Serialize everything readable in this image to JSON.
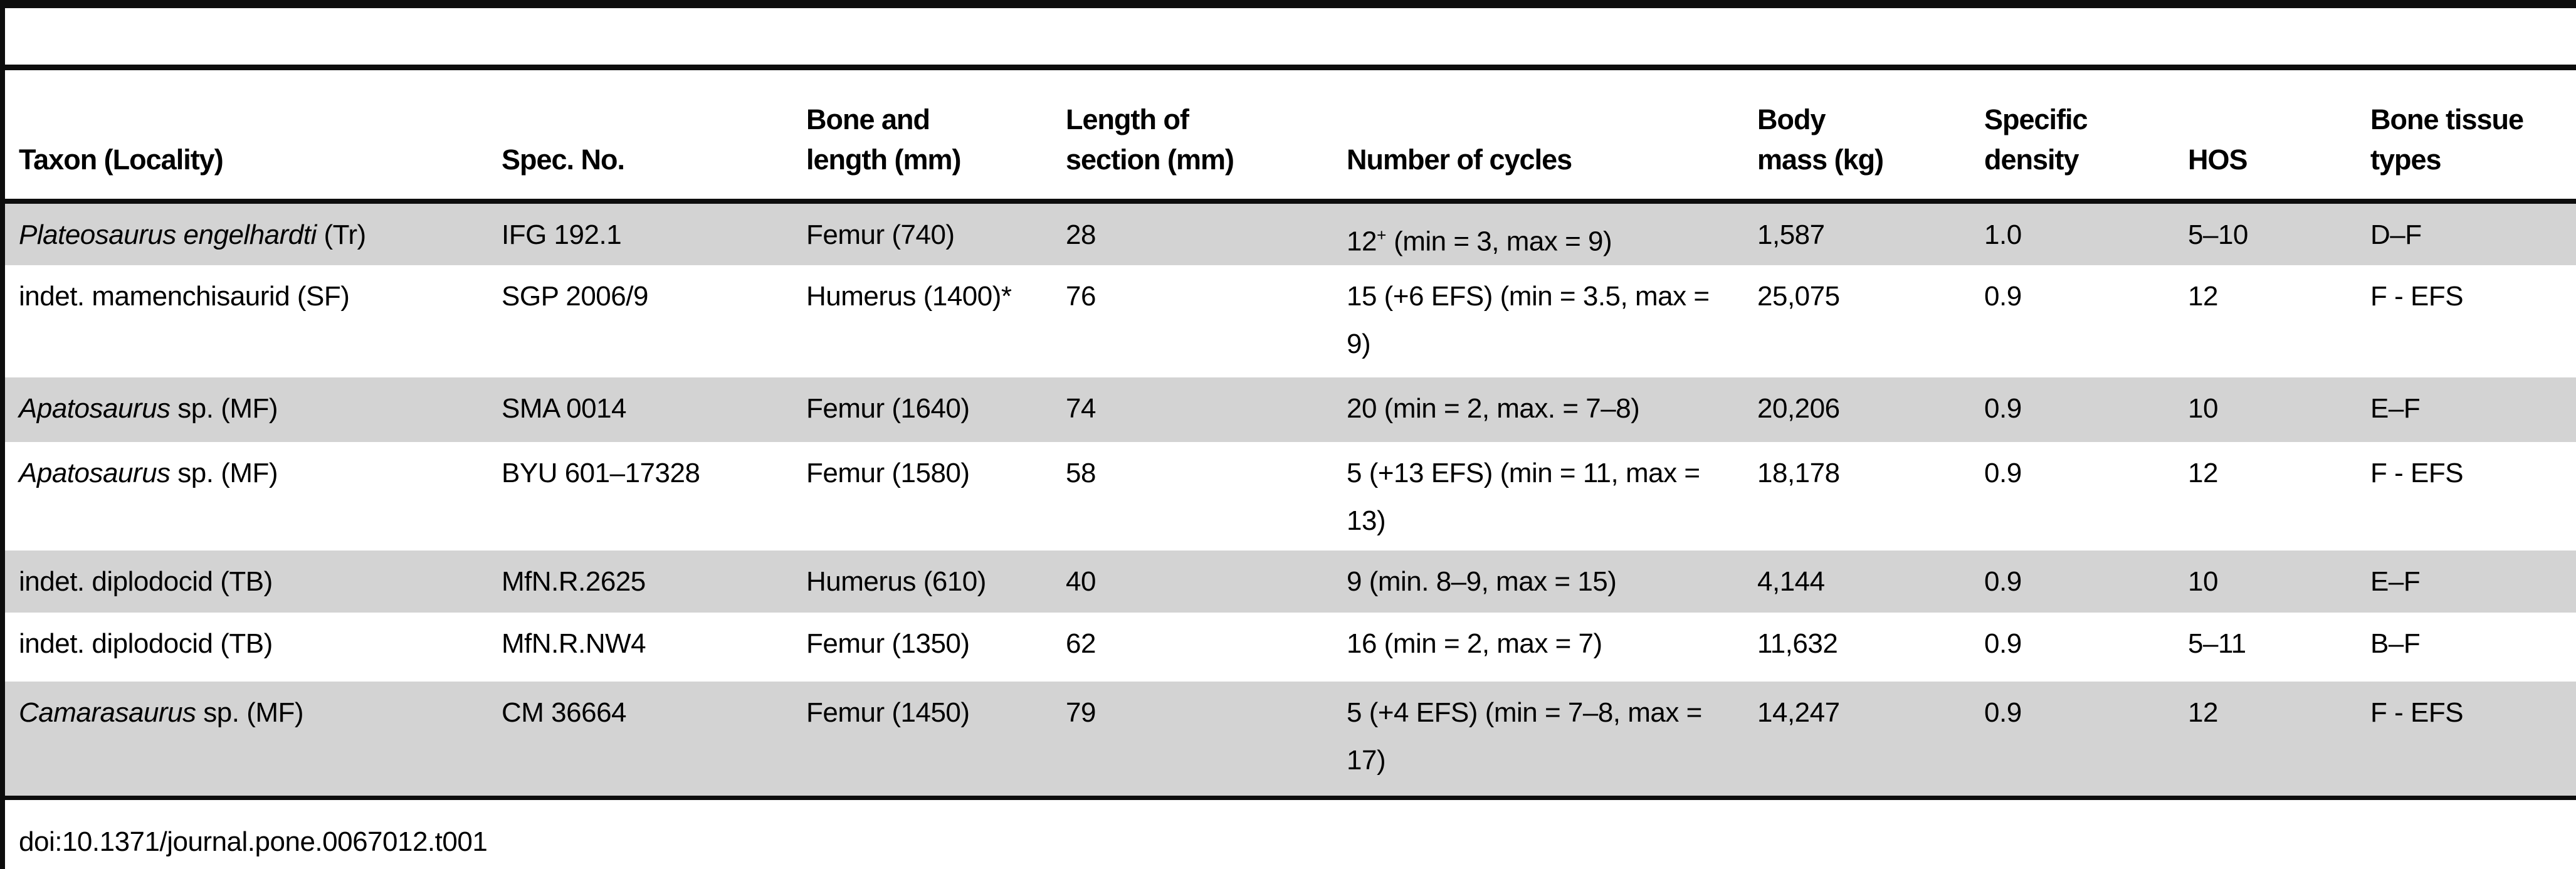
{
  "table": {
    "headers": [
      {
        "label": "Taxon (Locality)"
      },
      {
        "label": "Spec. No."
      },
      {
        "label": "Bone and\nlength (mm)"
      },
      {
        "label": "Length of\nsection (mm)"
      },
      {
        "label": "Number of cycles"
      },
      {
        "label": "Body\nmass (kg)"
      },
      {
        "label": "Specific\ndensity"
      },
      {
        "label": "HOS"
      },
      {
        "label": "Bone tissue\ntypes"
      }
    ],
    "rows": [
      {
        "taxon": [
          {
            "t": "Plateosaurus engelhardti",
            "italic": true
          },
          {
            "t": " (Tr)"
          }
        ],
        "spec_no": "IFG 192.1",
        "bone_length": "Femur (740)",
        "section_length": "28",
        "cycles": [
          {
            "t": "12"
          },
          {
            "t": "+",
            "sup": true
          },
          {
            "t": " (min = 3, max = 9)"
          }
        ],
        "body_mass": "1,587",
        "specific_density": "1.0",
        "hos": "5–10",
        "tissue_types": "D–F"
      },
      {
        "taxon": [
          {
            "t": "indet. mamenchisaurid (SF)"
          }
        ],
        "spec_no": "SGP 2006/9",
        "bone_length": "Humerus (1400)*",
        "section_length": "76",
        "cycles": [
          {
            "t": "15 (+6 EFS) (min = 3.5, max = 9)"
          }
        ],
        "body_mass": "25,075",
        "specific_density": "0.9",
        "hos": "12",
        "tissue_types": "F - EFS"
      },
      {
        "taxon": [
          {
            "t": "Apatosaurus",
            "italic": true
          },
          {
            "t": " sp. (MF)"
          }
        ],
        "spec_no": "SMA 0014",
        "bone_length": "Femur (1640)",
        "section_length": "74",
        "cycles": [
          {
            "t": "20 (min = 2, max. = 7–8)"
          }
        ],
        "body_mass": "20,206",
        "specific_density": "0.9",
        "hos": "10",
        "tissue_types": "E–F"
      },
      {
        "taxon": [
          {
            "t": "Apatosaurus",
            "italic": true
          },
          {
            "t": " sp. (MF)"
          }
        ],
        "spec_no": "BYU 601–17328",
        "bone_length": "Femur (1580)",
        "section_length": "58",
        "cycles": [
          {
            "t": "5 (+13 EFS) (min = 11, max = 13)"
          }
        ],
        "body_mass": "18,178",
        "specific_density": "0.9",
        "hos": "12",
        "tissue_types": "F - EFS"
      },
      {
        "taxon": [
          {
            "t": "indet. diplodocid (TB)"
          }
        ],
        "spec_no": "MfN.R.2625",
        "bone_length": "Humerus (610)",
        "section_length": "40",
        "cycles": [
          {
            "t": "9 (min. 8–9, max = 15)"
          }
        ],
        "body_mass": "4,144",
        "specific_density": "0.9",
        "hos": "10",
        "tissue_types": "E–F"
      },
      {
        "taxon": [
          {
            "t": "indet. diplodocid (TB)"
          }
        ],
        "spec_no": "MfN.R.NW4",
        "bone_length": "Femur (1350)",
        "section_length": "62",
        "cycles": [
          {
            "t": "16 (min = 2, max = 7)"
          }
        ],
        "body_mass": "11,632",
        "specific_density": "0.9",
        "hos": "5–11",
        "tissue_types": "B–F"
      },
      {
        "taxon": [
          {
            "t": "Camarasaurus",
            "italic": true
          },
          {
            "t": " sp. (MF)"
          }
        ],
        "spec_no": "CM 36664",
        "bone_length": "Femur (1450)",
        "section_length": "79",
        "cycles": [
          {
            "t": "5 (+4 EFS) (min = 7–8, max = 17)"
          }
        ],
        "body_mass": "14,247",
        "specific_density": "0.9",
        "hos": "12",
        "tissue_types": "F - EFS"
      }
    ],
    "footer_doi": "doi:10.1371/journal.pone.0067012.t001"
  },
  "colors": {
    "row_shading": "#d3d3d3",
    "rule": "#0d0d0d"
  }
}
